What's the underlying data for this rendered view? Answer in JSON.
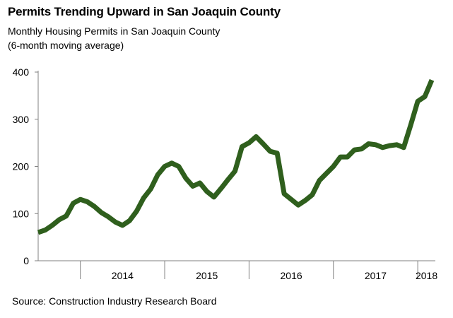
{
  "chart_data": {
    "type": "line",
    "title": "Permits Trending Upward in San Joaquin County",
    "subtitle_lines": [
      "Monthly Housing Permits in San Joaquin County",
      "(6-month moving average)"
    ],
    "source": "Source: Construction Industry Research Board",
    "xlabel": "",
    "ylabel": "",
    "ylim": [
      0,
      400
    ],
    "yticks": [
      0,
      100,
      200,
      300,
      400
    ],
    "x_period_labels": [
      "2014",
      "2015",
      "2016",
      "2017",
      "2018"
    ],
    "x_start": "2013-07",
    "grid": false,
    "legend": "none",
    "line_color": "#2f5f1d",
    "series": [
      {
        "values": [
          60,
          65,
          75,
          87,
          95,
          122,
          130,
          125,
          115,
          102,
          93,
          82,
          75,
          85,
          105,
          133,
          152,
          182,
          200,
          207,
          200,
          175,
          158,
          165,
          147,
          135,
          153,
          172,
          190,
          242,
          250,
          263,
          248,
          232,
          228,
          142,
          130,
          118,
          128,
          140,
          170,
          185,
          200,
          220,
          220,
          235,
          237,
          248,
          246,
          240,
          244,
          246,
          240,
          288,
          338,
          348,
          383
        ]
      }
    ]
  }
}
